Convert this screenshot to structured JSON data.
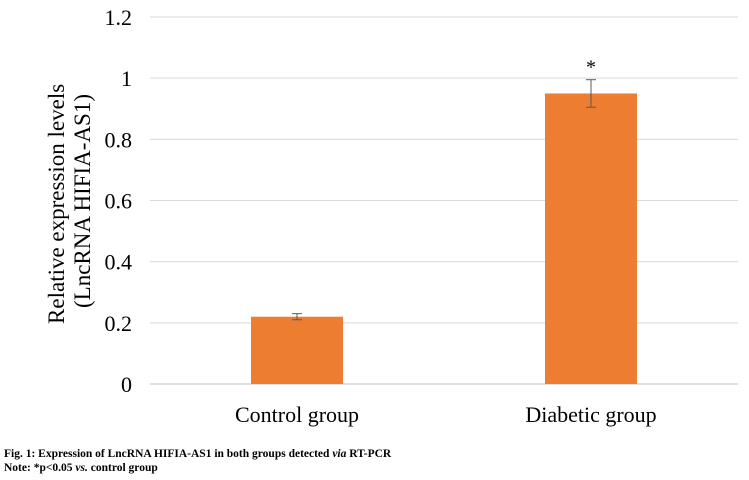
{
  "chart_data": {
    "type": "bar",
    "categories": [
      "Control group",
      "Diabetic group"
    ],
    "values": [
      0.22,
      0.95
    ],
    "error": [
      0.01,
      0.045
    ],
    "annotations": [
      "",
      "*"
    ],
    "ylabel_lines": [
      "Relative expression levels",
      "(LncRNA HIFIA-AS1)"
    ],
    "ylim": [
      0,
      1.2
    ],
    "yticks": [
      0,
      0.2,
      0.4,
      0.6,
      0.8,
      1,
      1.2
    ],
    "ytick_labels": [
      "0",
      "0.2",
      "0.4",
      "0.6",
      "0.8",
      "1",
      "1.2"
    ],
    "grid": true,
    "colors": {
      "bar": "#ED7D31",
      "grid": "#D9D9D9",
      "axis": "#BFBFBF",
      "error_bar": "#595959"
    }
  },
  "caption": {
    "line1_prefix": "Fig. 1: Expression of LncRNA HIFIA-AS1 in both groups detected ",
    "line1_italic": "via",
    "line1_suffix": " RT-PCR",
    "line2_prefix": "Note: *p<0.05 ",
    "line2_italic": "vs.",
    "line2_suffix": " control group"
  }
}
